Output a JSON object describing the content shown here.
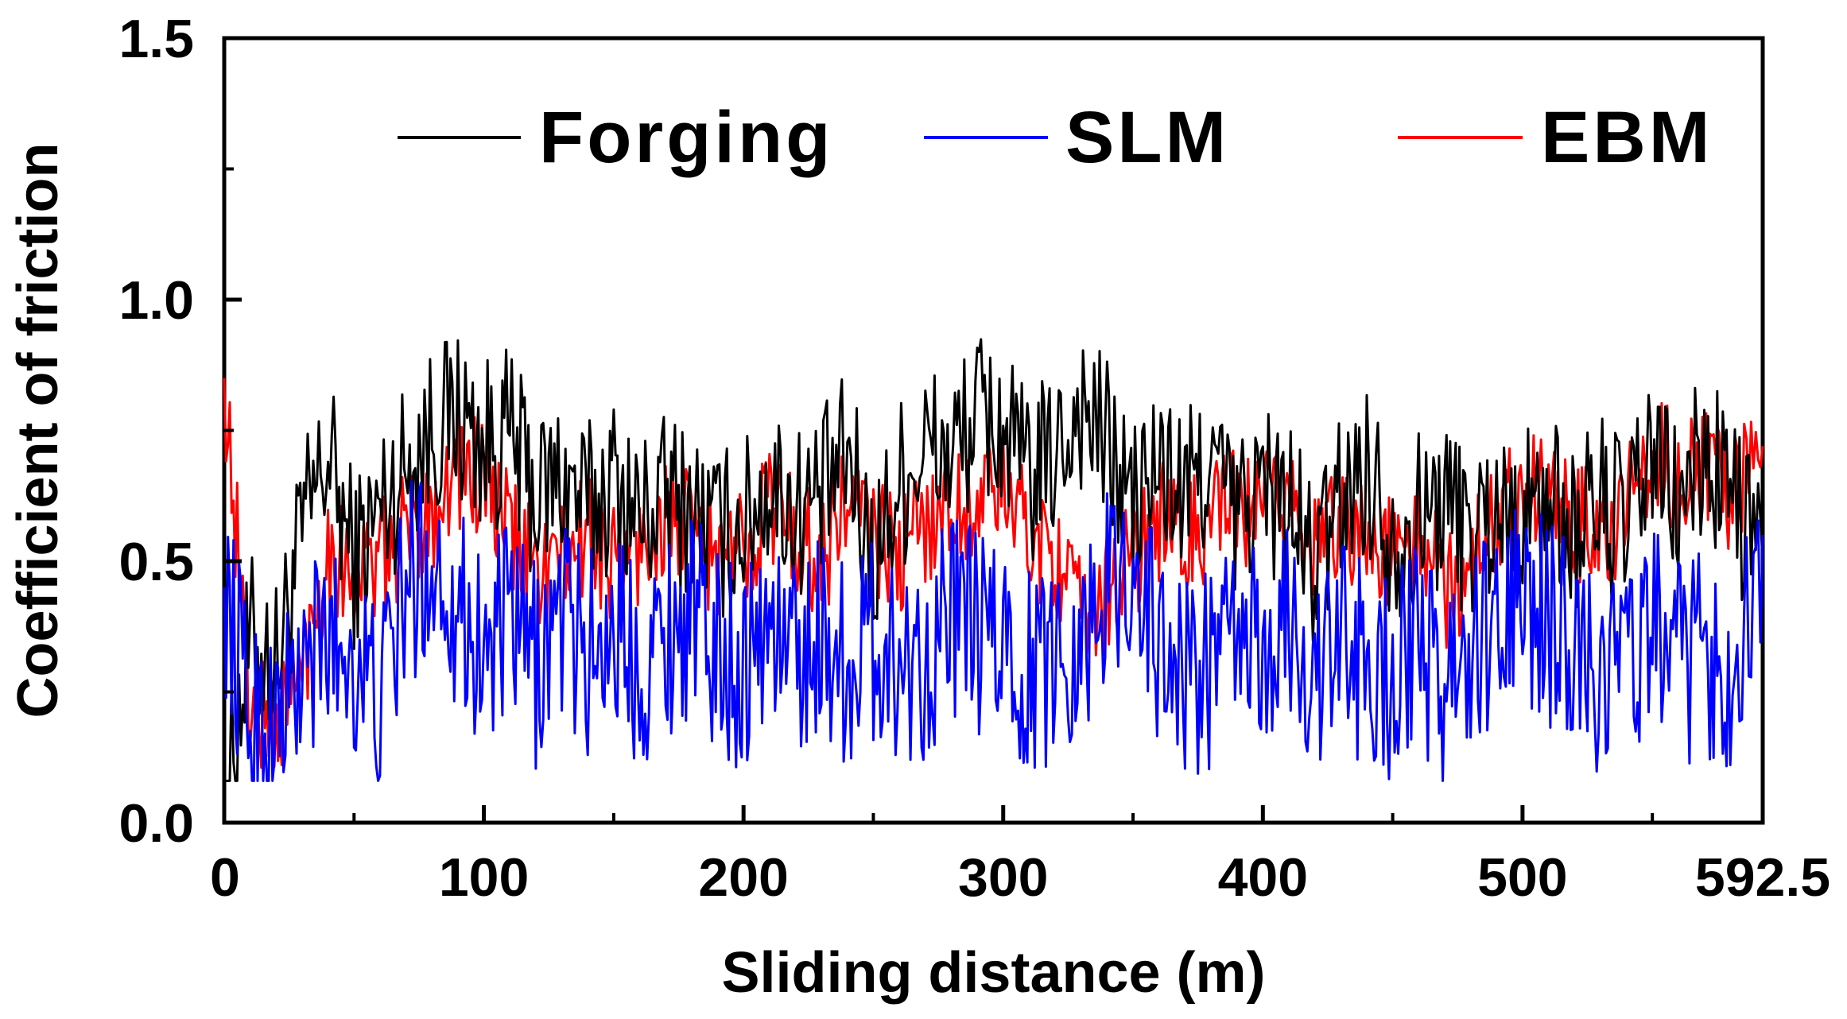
{
  "chart_data": {
    "type": "line",
    "title": "",
    "xlabel": "Sliding distance (m)",
    "ylabel": "Coefficient of friction",
    "xlim": [
      0,
      592.5
    ],
    "ylim": [
      0,
      1.5
    ],
    "x_ticks": [
      0,
      100,
      200,
      300,
      400,
      500,
      592.5
    ],
    "x_tick_labels": [
      "0",
      "100",
      "200",
      "300",
      "400",
      "500",
      "592.5"
    ],
    "y_ticks": [
      0,
      0.5,
      1.0,
      1.5
    ],
    "y_tick_labels": [
      "0.0",
      "0.5",
      "1.0",
      "1.5"
    ],
    "grid": false,
    "legend_position": "top",
    "x": [
      0,
      10,
      20,
      30,
      40,
      50,
      60,
      70,
      80,
      90,
      100,
      110,
      120,
      130,
      140,
      150,
      160,
      170,
      180,
      190,
      200,
      210,
      220,
      230,
      240,
      250,
      260,
      270,
      280,
      290,
      300,
      310,
      320,
      330,
      340,
      350,
      360,
      370,
      380,
      390,
      400,
      410,
      420,
      430,
      440,
      450,
      460,
      470,
      480,
      490,
      500,
      510,
      520,
      530,
      540,
      550,
      560,
      570,
      580,
      592.5
    ],
    "series": [
      {
        "name": "Forging",
        "color": "#000000",
        "values": [
          0.02,
          0.35,
          0.3,
          0.55,
          0.7,
          0.5,
          0.6,
          0.68,
          0.75,
          0.78,
          0.72,
          0.74,
          0.62,
          0.66,
          0.6,
          0.65,
          0.58,
          0.62,
          0.6,
          0.55,
          0.57,
          0.65,
          0.6,
          0.62,
          0.7,
          0.5,
          0.65,
          0.72,
          0.7,
          0.78,
          0.75,
          0.65,
          0.7,
          0.8,
          0.72,
          0.6,
          0.68,
          0.62,
          0.7,
          0.58,
          0.65,
          0.6,
          0.48,
          0.62,
          0.68,
          0.55,
          0.58,
          0.62,
          0.55,
          0.6,
          0.58,
          0.62,
          0.56,
          0.62,
          0.56,
          0.7,
          0.6,
          0.7,
          0.64,
          0.5
        ]
      },
      {
        "name": "SLM",
        "color": "#0000ff",
        "values": [
          0.45,
          0.2,
          0.18,
          0.28,
          0.35,
          0.32,
          0.22,
          0.45,
          0.5,
          0.42,
          0.32,
          0.38,
          0.3,
          0.4,
          0.32,
          0.38,
          0.3,
          0.36,
          0.4,
          0.32,
          0.3,
          0.38,
          0.32,
          0.36,
          0.3,
          0.35,
          0.3,
          0.32,
          0.4,
          0.36,
          0.34,
          0.28,
          0.32,
          0.35,
          0.45,
          0.5,
          0.34,
          0.28,
          0.3,
          0.35,
          0.32,
          0.38,
          0.28,
          0.34,
          0.3,
          0.28,
          0.34,
          0.25,
          0.33,
          0.36,
          0.42,
          0.38,
          0.35,
          0.28,
          0.32,
          0.38,
          0.3,
          0.32,
          0.28,
          0.55
        ]
      },
      {
        "name": "EBM",
        "color": "#ff0000",
        "values": [
          0.85,
          0.22,
          0.18,
          0.3,
          0.52,
          0.48,
          0.5,
          0.55,
          0.6,
          0.68,
          0.65,
          0.55,
          0.48,
          0.5,
          0.55,
          0.5,
          0.52,
          0.58,
          0.55,
          0.5,
          0.52,
          0.62,
          0.55,
          0.5,
          0.62,
          0.55,
          0.5,
          0.58,
          0.6,
          0.62,
          0.64,
          0.55,
          0.52,
          0.38,
          0.45,
          0.5,
          0.58,
          0.54,
          0.58,
          0.6,
          0.58,
          0.66,
          0.5,
          0.6,
          0.54,
          0.5,
          0.56,
          0.45,
          0.48,
          0.6,
          0.66,
          0.62,
          0.58,
          0.55,
          0.6,
          0.72,
          0.65,
          0.68,
          0.62,
          0.72
        ]
      }
    ]
  }
}
